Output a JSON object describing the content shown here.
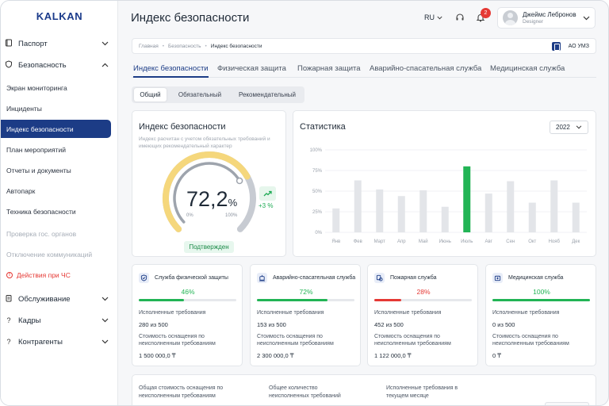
{
  "sidebar": {
    "logo": "KALKAN",
    "groups": [
      {
        "label": "Паспорт",
        "icon": "book-icon"
      },
      {
        "label": "Безопасность",
        "icon": "shield-icon"
      },
      {
        "label": "Обслуживание",
        "icon": "clipboard-icon"
      },
      {
        "label": "Кадры",
        "icon": "question-icon"
      },
      {
        "label": "Контрагенты",
        "icon": "question-icon"
      }
    ],
    "items": [
      {
        "label": "Экран мониторинга"
      },
      {
        "label": "Инциденты"
      },
      {
        "label": "Индекс безопасности"
      },
      {
        "label": "План мероприятий"
      },
      {
        "label": "Отчеты и документы"
      },
      {
        "label": "Автопарк"
      },
      {
        "label": "Техника безопасности"
      },
      {
        "label": "Проверка гос. органов"
      },
      {
        "label": "Отключение коммуникаций"
      },
      {
        "label": "Действия при ЧС"
      }
    ]
  },
  "header": {
    "title": "Индекс безопасности",
    "language": "RU",
    "notifications_count": "2",
    "user_name": "Джеймс Лебронов",
    "user_role": "Designer"
  },
  "breadcrumb": {
    "items": [
      "Главная",
      "Безопасность",
      "Индекс безопасности"
    ],
    "organization": "АО УМЗ"
  },
  "tabs": [
    "Индекс безопасности",
    "Физическая защита",
    "Пожарная защита",
    "Аварийно-спасательная служба",
    "Медицинская служба"
  ],
  "segments": [
    "Общий",
    "Обязательный",
    "Рекомендательный"
  ],
  "index_card": {
    "title": "Индекс безопасности",
    "subtitle": "Индекс расчитан с учетом обязательных требований и имеющих рекомендательный характер",
    "value": "72,2",
    "unit": "%",
    "min": "0%",
    "max": "100%",
    "trend": "+3 %",
    "status": "Подтвержден",
    "gauge_fraction": 0.722
  },
  "stats_card": {
    "title": "Статистика",
    "year": "2022"
  },
  "chart_data": {
    "type": "bar",
    "title": "",
    "categories": [
      "Янв",
      "Фев",
      "Март",
      "Апр",
      "Май",
      "Июнь",
      "Июль",
      "Авг",
      "Сен",
      "Окт",
      "Нояб",
      "Дек"
    ],
    "values": [
      29,
      63,
      52,
      44,
      51,
      31,
      80,
      47,
      62,
      36,
      63,
      36
    ],
    "highlight_index": 6,
    "y_ticks": [
      "100%",
      "75%",
      "50%",
      "25%",
      "0%"
    ],
    "ylim": [
      0,
      100
    ],
    "colors": {
      "default": "#e3e5e9",
      "highlight": "#22b455"
    },
    "grid": true
  },
  "services": [
    {
      "title": "Служба физической защиты",
      "icon": "shield-check-icon",
      "pct": "46%",
      "fraction": 0.46,
      "color": "#22b455",
      "req_label": "Исполненные требования",
      "req_value": "280 из 500",
      "cost_label": "Стоимость оснащения по неисполненным требованиям",
      "cost_value": "1 500 000,0 ₸"
    },
    {
      "title": "Аварийно-спасательная служба",
      "icon": "rescue-icon",
      "pct": "72%",
      "fraction": 0.72,
      "color": "#22b455",
      "req_label": "Исполненные требования",
      "req_value": "153 из 500",
      "cost_label": "Стоимость оснащения по неисполненным требованиям",
      "cost_value": "2 300 000,0 ₸"
    },
    {
      "title": "Пожарная служба",
      "icon": "fire-icon",
      "pct": "28%",
      "fraction": 0.28,
      "color": "#e53935",
      "req_label": "Исполненные требования",
      "req_value": "452 из 500",
      "cost_label": "Стоимость оснащения по неисполненным требованиям",
      "cost_value": "1 122 000,0 ₸"
    },
    {
      "title": "Медицинская служба",
      "icon": "medical-icon",
      "pct": "100%",
      "fraction": 1.0,
      "color": "#22b455",
      "req_label": "Исполненные требования",
      "req_value": "0 из 500",
      "cost_label": "Стоимость оснащения по неисполненным требованиям",
      "cost_value": "0 ₸"
    }
  ],
  "bottom": {
    "cols": [
      "Общая стоимость оснащения по неисполненным требованиям",
      "Общее количество неисполненных требований",
      "Исполненные требования в текущем месяце"
    ]
  }
}
